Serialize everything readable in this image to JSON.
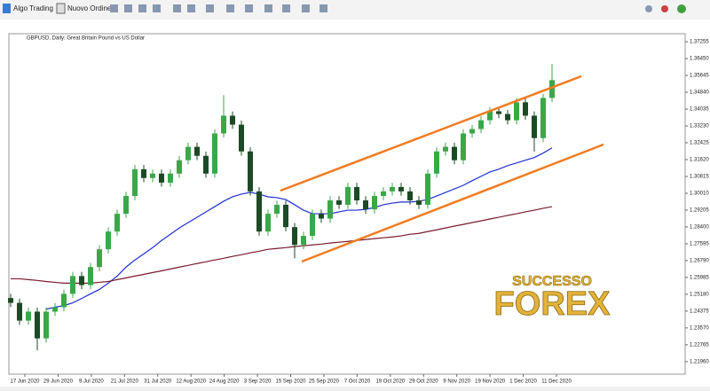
{
  "toolbar": {
    "buttons": [
      "Algo Trading",
      "Nuovo Ordine"
    ]
  },
  "watermark": {
    "top": "SUCCESSO",
    "bottom": "FOREX"
  },
  "chart_data": {
    "type": "candlestick",
    "title": "GBPUSD, Daily: Great Britain Pound vs US Dollar",
    "x_labels": [
      "17 Jun 2020",
      "29 Jun 2020",
      "9 Jul 2020",
      "21 Jul 2020",
      "31 Jul 2020",
      "12 Aug 2020",
      "24 Aug 2020",
      "3 Sep 2020",
      "15 Sep 2020",
      "25 Sep 2020",
      "7 Oct 2020",
      "19 Oct 2020",
      "29 Oct 2020",
      "9 Nov 2020",
      "19 Nov 2020",
      "1 Dec 2020",
      "11 Dec 2020"
    ],
    "ylim": [
      1.2136,
      1.3764
    ],
    "yticks": [
      {
        "value": 1.2196,
        "label": "1.21960"
      },
      {
        "value": 1.22765,
        "label": "1.22765"
      },
      {
        "value": 1.2357,
        "label": "1.23570"
      },
      {
        "value": 1.24375,
        "label": "1.24375"
      },
      {
        "value": 1.2518,
        "label": "1.25180"
      },
      {
        "value": 1.25985,
        "label": "1.25985"
      },
      {
        "value": 1.2679,
        "label": "1.26790"
      },
      {
        "value": 1.27595,
        "label": "1.27595"
      },
      {
        "value": 1.284,
        "label": "1.28400"
      },
      {
        "value": 1.29205,
        "label": "1.29205"
      },
      {
        "value": 1.3001,
        "label": "1.30010"
      },
      {
        "value": 1.30815,
        "label": "1.30815"
      },
      {
        "value": 1.3162,
        "label": "1.31620"
      },
      {
        "value": 1.32425,
        "label": "1.32425"
      },
      {
        "value": 1.3323,
        "label": "1.33230"
      },
      {
        "value": 1.34035,
        "label": "1.34035"
      },
      {
        "value": 1.3484,
        "label": "1.34840"
      },
      {
        "value": 1.35645,
        "label": "1.35645"
      },
      {
        "value": 1.3645,
        "label": "1.36450"
      },
      {
        "value": 1.37255,
        "label": "1.37255"
      }
    ],
    "bull_color": "#3aa848",
    "bear_color": "#1d4a26",
    "open": [
      1.25,
      1.2477,
      1.2392,
      1.2435,
      1.2307,
      1.2435,
      1.2456,
      1.252,
      1.2605,
      1.2562,
      1.2648,
      1.2733,
      1.2818,
      1.2903,
      1.2988,
      1.3116,
      1.3074,
      1.3095,
      1.3052,
      1.3095,
      1.3159,
      1.3223,
      1.318,
      1.3095,
      1.3287,
      1.3372,
      1.3329,
      1.3201,
      1.301,
      1.2818,
      1.2903,
      1.2946,
      1.2839,
      1.2754,
      1.2797,
      1.2903,
      1.288,
      1.2967,
      1.2946,
      1.3031,
      1.2967,
      1.2924,
      1.2988,
      1.301,
      1.3031,
      1.301,
      1.2967,
      1.2946,
      1.3095,
      1.3201,
      1.3223,
      1.3159,
      1.3287,
      1.3308,
      1.335,
      1.3393,
      1.338,
      1.335,
      1.3436,
      1.3372,
      1.3265,
      1.3457
    ],
    "high": [
      1.252,
      1.2497,
      1.2455,
      1.2455,
      1.2455,
      1.2476,
      1.254,
      1.2625,
      1.2625,
      1.2668,
      1.2753,
      1.2838,
      1.2923,
      1.3008,
      1.3136,
      1.3136,
      1.3115,
      1.3115,
      1.3115,
      1.3179,
      1.3243,
      1.3243,
      1.32,
      1.3307,
      1.347,
      1.3392,
      1.3349,
      1.3221,
      1.303,
      1.2923,
      1.2966,
      1.2966,
      1.2859,
      1.2817,
      1.2923,
      1.2923,
      1.2987,
      1.2987,
      1.3051,
      1.3051,
      1.2987,
      1.3008,
      1.303,
      1.3051,
      1.3051,
      1.303,
      1.2987,
      1.3115,
      1.3221,
      1.3243,
      1.3243,
      1.3307,
      1.3328,
      1.337,
      1.3413,
      1.3413,
      1.34,
      1.3456,
      1.3456,
      1.3392,
      1.3477,
      1.362
    ],
    "low": [
      1.2457,
      1.2372,
      1.2372,
      1.225,
      1.2287,
      1.2415,
      1.2436,
      1.25,
      1.2542,
      1.2542,
      1.2628,
      1.2713,
      1.2798,
      1.2883,
      1.2968,
      1.3054,
      1.3054,
      1.3032,
      1.3032,
      1.3075,
      1.3139,
      1.316,
      1.3075,
      1.3075,
      1.3267,
      1.3309,
      1.3181,
      1.299,
      1.2798,
      1.2798,
      1.2883,
      1.2819,
      1.269,
      1.2734,
      1.2777,
      1.286,
      1.286,
      1.2926,
      1.2926,
      1.2947,
      1.2904,
      1.2904,
      1.2968,
      1.299,
      1.299,
      1.2947,
      1.2926,
      1.2926,
      1.3075,
      1.3181,
      1.3139,
      1.3139,
      1.3267,
      1.3288,
      1.333,
      1.336,
      1.333,
      1.333,
      1.3352,
      1.32,
      1.3245,
      1.3437
    ],
    "close": [
      1.2477,
      1.2392,
      1.2435,
      1.2307,
      1.2435,
      1.2456,
      1.252,
      1.2605,
      1.2562,
      1.2648,
      1.2733,
      1.2818,
      1.2903,
      1.2988,
      1.3116,
      1.3074,
      1.3095,
      1.3052,
      1.3095,
      1.3159,
      1.3223,
      1.318,
      1.3095,
      1.3287,
      1.3372,
      1.3329,
      1.3201,
      1.301,
      1.2818,
      1.2903,
      1.2946,
      1.2839,
      1.2754,
      1.2797,
      1.2903,
      1.288,
      1.2967,
      1.2946,
      1.3031,
      1.2967,
      1.2924,
      1.2988,
      1.301,
      1.3031,
      1.301,
      1.2967,
      1.2946,
      1.3095,
      1.3201,
      1.3223,
      1.3159,
      1.3287,
      1.3308,
      1.335,
      1.3393,
      1.338,
      1.335,
      1.3436,
      1.3372,
      1.3265,
      1.3457,
      1.3542
    ],
    "series": [
      {
        "color": "#1f2fd0",
        "values": [
          null,
          null,
          null,
          null,
          1.2447,
          1.2456,
          1.2464,
          1.2477,
          1.2498,
          1.252,
          1.2541,
          1.2571,
          1.2605,
          1.2648,
          1.2682,
          1.2711,
          1.2741,
          1.2775,
          1.2805,
          1.2835,
          1.2861,
          1.2886,
          1.2912,
          1.2937,
          1.2963,
          1.2984,
          1.2997,
          1.3005,
          1.2997,
          1.2984,
          1.298,
          1.2971,
          1.2946,
          1.292,
          1.2903,
          1.2903,
          1.2903,
          1.2912,
          1.292,
          1.292,
          1.2924,
          1.2933,
          1.2946,
          1.2954,
          1.2959,
          1.2959,
          1.2963,
          1.2971,
          1.2988,
          1.3005,
          1.3022,
          1.3039,
          1.3061,
          1.3082,
          1.3103,
          1.3116,
          1.3133,
          1.3146,
          1.3159,
          1.3172,
          1.3193,
          1.3218
        ]
      },
      {
        "color": "#7a1a2a",
        "values": [
          1.2592,
          1.2592,
          1.2588,
          1.2584,
          1.2579,
          1.2575,
          1.2571,
          1.2571,
          1.2571,
          1.2571,
          1.2575,
          1.2579,
          1.2588,
          1.2596,
          1.2605,
          1.2613,
          1.2622,
          1.263,
          1.2639,
          1.2648,
          1.2656,
          1.2665,
          1.2673,
          1.2682,
          1.269,
          1.2699,
          1.2707,
          1.2716,
          1.2724,
          1.2733,
          1.2737,
          1.2741,
          1.2746,
          1.275,
          1.2754,
          1.2758,
          1.2763,
          1.2767,
          1.2771,
          1.2775,
          1.278,
          1.2784,
          1.2788,
          1.2792,
          1.2797,
          1.2805,
          1.2809,
          1.2818,
          1.2826,
          1.2835,
          1.2844,
          1.2852,
          1.2861,
          1.2869,
          1.2878,
          1.2886,
          1.2895,
          1.2903,
          1.2912,
          1.292,
          1.2929,
          1.2937
        ]
      }
    ]
  }
}
